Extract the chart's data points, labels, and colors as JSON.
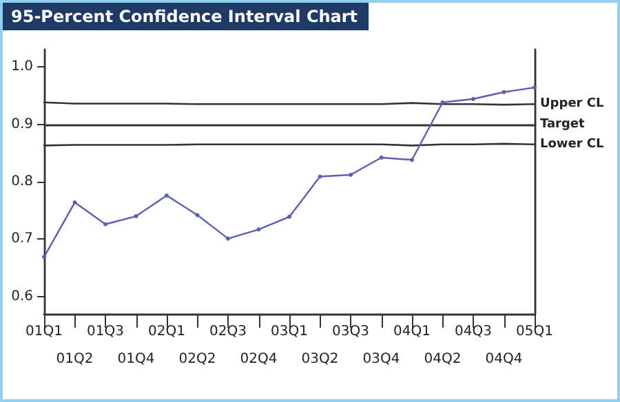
{
  "chart_data": {
    "type": "line",
    "title": "95-Percent Confidence Interval Chart",
    "categories": [
      "01Q1",
      "01Q2",
      "01Q3",
      "01Q4",
      "02Q1",
      "02Q2",
      "02Q3",
      "02Q4",
      "03Q1",
      "03Q2",
      "03Q3",
      "03Q4",
      "04Q1",
      "04Q2",
      "04Q3",
      "04Q4",
      "05Q1"
    ],
    "series": [
      {
        "color": "#5b5fb0",
        "marker": "circle",
        "values": [
          0.669,
          0.764,
          0.726,
          0.74,
          0.776,
          0.742,
          0.701,
          0.717,
          0.739,
          0.809,
          0.812,
          0.842,
          0.838,
          0.938,
          0.944,
          0.956,
          0.964
        ]
      },
      {
        "name": "Upper CL",
        "color": "#333333",
        "marker": "none",
        "values": [
          0.938,
          0.936,
          0.936,
          0.936,
          0.936,
          0.935,
          0.935,
          0.935,
          0.935,
          0.935,
          0.935,
          0.935,
          0.937,
          0.935,
          0.935,
          0.934,
          0.935
        ]
      },
      {
        "name": "Lower CL",
        "color": "#333333",
        "marker": "none",
        "values": [
          0.863,
          0.864,
          0.864,
          0.864,
          0.864,
          0.865,
          0.865,
          0.865,
          0.865,
          0.865,
          0.865,
          0.865,
          0.863,
          0.865,
          0.865,
          0.866,
          0.865
        ]
      }
    ],
    "ref_lines": [
      {
        "axis": "y",
        "value": 0.9,
        "label": "Target",
        "color": "#333333"
      }
    ],
    "ylim": [
      0.57,
      1.03
    ],
    "yticks": [
      0.6,
      0.7,
      0.8,
      0.9,
      {
        "value": 1,
        "label": "1.0"
      }
    ],
    "grid": false,
    "legend": false,
    "line_style": "solid"
  }
}
